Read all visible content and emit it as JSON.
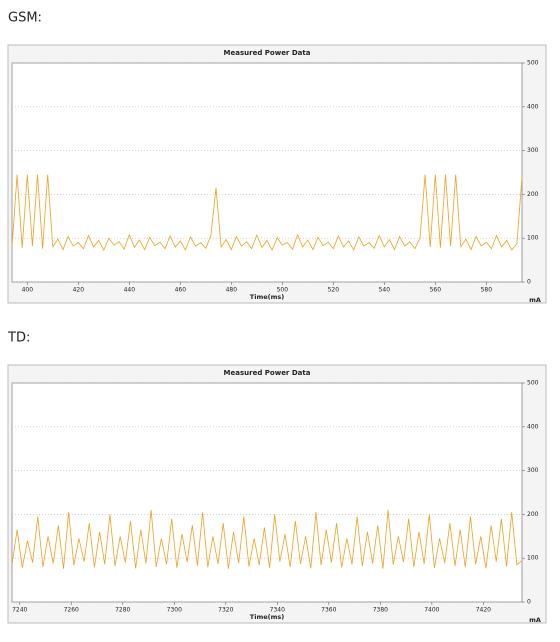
{
  "chart_data": [
    {
      "type": "line",
      "heading": "GSM:",
      "title": "Measured Power Data",
      "xlabel": "Time(ms)",
      "ylabel": "mA",
      "color": "#f0a020",
      "xlim": [
        394,
        594
      ],
      "xticks": [
        400,
        420,
        440,
        460,
        480,
        500,
        520,
        540,
        560,
        580
      ],
      "ylim": [
        0,
        500
      ],
      "yticks": [
        0,
        100,
        200,
        300,
        400,
        500
      ],
      "grid": true,
      "x": [
        394,
        396,
        398,
        400,
        402,
        404,
        406,
        408,
        410,
        412,
        414,
        416,
        418,
        420,
        422,
        424,
        426,
        428,
        430,
        432,
        434,
        436,
        438,
        440,
        442,
        444,
        446,
        448,
        450,
        452,
        454,
        456,
        458,
        460,
        462,
        464,
        466,
        468,
        470,
        472,
        474,
        476,
        478,
        480,
        482,
        484,
        486,
        488,
        490,
        492,
        494,
        496,
        498,
        500,
        502,
        504,
        506,
        508,
        510,
        512,
        514,
        516,
        518,
        520,
        522,
        524,
        526,
        528,
        530,
        532,
        534,
        536,
        538,
        540,
        542,
        544,
        546,
        548,
        550,
        552,
        554,
        556,
        558,
        560,
        562,
        564,
        566,
        568,
        570,
        572,
        574,
        576,
        578,
        580,
        582,
        584,
        586,
        588,
        590,
        592,
        594
      ],
      "values": [
        80,
        245,
        78,
        245,
        82,
        245,
        76,
        245,
        80,
        98,
        74,
        104,
        82,
        90,
        76,
        106,
        80,
        95,
        73,
        100,
        84,
        92,
        75,
        108,
        79,
        96,
        74,
        102,
        83,
        91,
        76,
        105,
        80,
        94,
        73,
        103,
        82,
        90,
        77,
        106,
        215,
        80,
        97,
        74,
        104,
        82,
        92,
        76,
        107,
        79,
        95,
        73,
        101,
        84,
        90,
        75,
        108,
        80,
        96,
        74,
        102,
        83,
        91,
        76,
        105,
        80,
        94,
        73,
        103,
        82,
        90,
        77,
        106,
        80,
        97,
        74,
        104,
        82,
        92,
        76,
        100,
        245,
        80,
        245,
        78,
        245,
        82,
        245,
        80,
        98,
        74,
        104,
        82,
        91,
        76,
        106,
        80,
        95,
        73,
        88,
        240
      ]
    },
    {
      "type": "line",
      "heading": "TD:",
      "title": "Measured Power Data",
      "xlabel": "Time(ms)",
      "ylabel": "mA",
      "color": "#f0a020",
      "xlim": [
        7237,
        7435
      ],
      "xticks": [
        7240,
        7260,
        7280,
        7300,
        7320,
        7340,
        7360,
        7380,
        7400,
        7420
      ],
      "ylim": [
        0,
        500
      ],
      "yticks": [
        0,
        100,
        200,
        300,
        400,
        500
      ],
      "grid": true,
      "x": [
        7237,
        7239,
        7241,
        7243,
        7245,
        7247,
        7249,
        7251,
        7253,
        7255,
        7257,
        7259,
        7261,
        7263,
        7265,
        7267,
        7269,
        7271,
        7273,
        7275,
        7277,
        7279,
        7281,
        7283,
        7285,
        7287,
        7289,
        7291,
        7293,
        7295,
        7297,
        7299,
        7301,
        7303,
        7305,
        7307,
        7309,
        7311,
        7313,
        7315,
        7317,
        7319,
        7321,
        7323,
        7325,
        7327,
        7329,
        7331,
        7333,
        7335,
        7337,
        7339,
        7341,
        7343,
        7345,
        7347,
        7349,
        7351,
        7353,
        7355,
        7357,
        7359,
        7361,
        7363,
        7365,
        7367,
        7369,
        7371,
        7373,
        7375,
        7377,
        7379,
        7381,
        7383,
        7385,
        7387,
        7389,
        7391,
        7393,
        7395,
        7397,
        7399,
        7401,
        7403,
        7405,
        7407,
        7409,
        7411,
        7413,
        7415,
        7417,
        7419,
        7421,
        7423,
        7425,
        7427,
        7429,
        7431,
        7433,
        7435
      ],
      "values": [
        85,
        165,
        78,
        140,
        90,
        195,
        80,
        150,
        88,
        175,
        76,
        205,
        84,
        145,
        92,
        180,
        79,
        160,
        86,
        200,
        82,
        150,
        90,
        185,
        77,
        165,
        88,
        210,
        80,
        145,
        86,
        190,
        78,
        155,
        91,
        175,
        83,
        205,
        79,
        150,
        87,
        180,
        76,
        160,
        89,
        195,
        81,
        145,
        85,
        170,
        78,
        200,
        92,
        155,
        80,
        185,
        87,
        150,
        77,
        205,
        84,
        165,
        90,
        180,
        79,
        145,
        86,
        195,
        82,
        160,
        88,
        175,
        76,
        210,
        85,
        150,
        91,
        190,
        80,
        160,
        87,
        200,
        78,
        145,
        89,
        180,
        83,
        165,
        79,
        195,
        86,
        150,
        77,
        175,
        92,
        190,
        81,
        205,
        85,
        95
      ]
    }
  ]
}
